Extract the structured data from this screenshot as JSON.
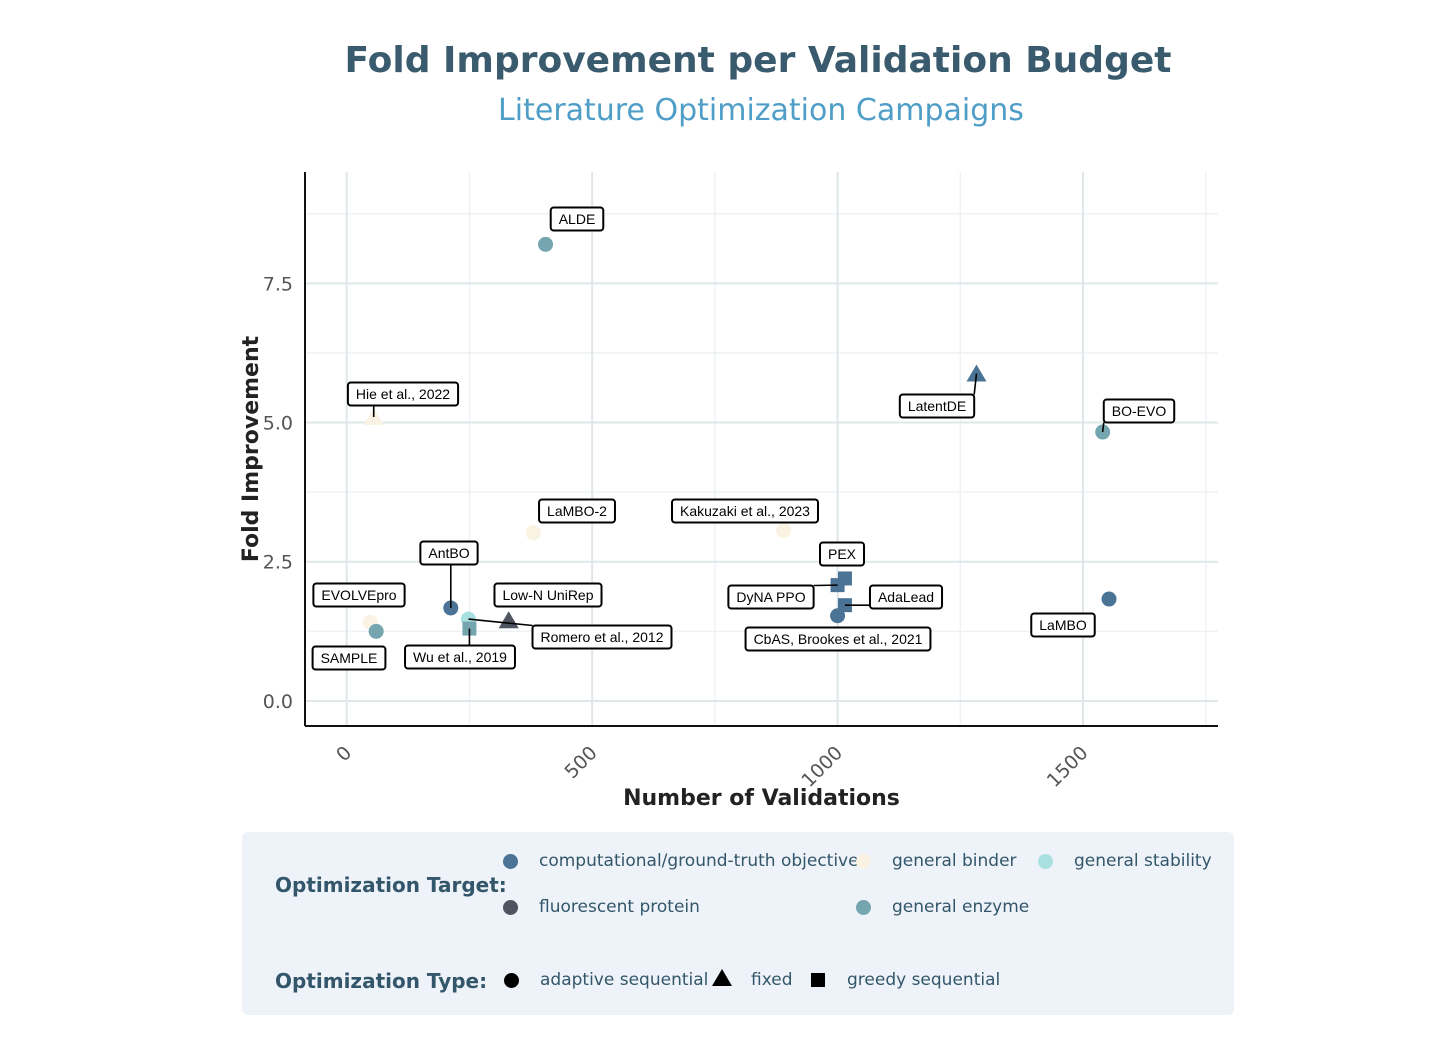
{
  "chart_data": {
    "type": "scatter",
    "title": "Fold Improvement per Validation Budget",
    "subtitle": "Literature Optimization Campaigns",
    "xlabel": "Number of Validations",
    "ylabel": "Fold Improvement",
    "xlim": [
      -85,
      1775
    ],
    "ylim": [
      -0.45,
      9.5
    ],
    "x_ticks": [
      0,
      500,
      1000,
      1500
    ],
    "x_tick_labels": [
      "0",
      "500",
      "1000",
      "1500"
    ],
    "y_ticks": [
      0,
      2.5,
      5,
      7.5
    ],
    "y_tick_labels": [
      "0.0",
      "2.5",
      "5.0",
      "7.5"
    ],
    "grid": true,
    "legend_position": "bottom",
    "colors": {
      "computational/ground-truth objective": "#4b7396",
      "general binder": "#faf2e2",
      "general stability": "#a8e0e0",
      "fluorescent protein": "#4f5560",
      "general enzyme": "#75a6b0"
    },
    "points": [
      {
        "name": "ALDE",
        "x": 405,
        "y": 8.2,
        "target": "general enzyme",
        "type": "adaptive sequential"
      },
      {
        "name": "Hie et al., 2022",
        "x": 55,
        "y": 5.1,
        "target": "general binder",
        "type": "fixed"
      },
      {
        "name": "LatentDE",
        "x": 1283,
        "y": 5.88,
        "target": "computational/ground-truth objective",
        "type": "fixed"
      },
      {
        "name": "BO-EVO",
        "x": 1540,
        "y": 4.83,
        "target": "general enzyme",
        "type": "adaptive sequential"
      },
      {
        "name": "LaMBO-2",
        "x": 380,
        "y": 3.02,
        "target": "general binder",
        "type": "adaptive sequential"
      },
      {
        "name": "Kakuzaki et al., 2023",
        "x": 890,
        "y": 3.06,
        "target": "general binder",
        "type": "adaptive sequential"
      },
      {
        "name": "PEX",
        "x": 1015,
        "y": 2.2,
        "target": "computational/ground-truth objective",
        "type": "greedy sequential"
      },
      {
        "name": "DyNA PPO",
        "x": 1000,
        "y": 2.08,
        "target": "computational/ground-truth objective",
        "type": "greedy sequential"
      },
      {
        "name": "AdaLead",
        "x": 1015,
        "y": 1.72,
        "target": "computational/ground-truth objective",
        "type": "greedy sequential"
      },
      {
        "name": "CbAS, Brookes et al., 2021",
        "x": 1000,
        "y": 1.53,
        "target": "computational/ground-truth objective",
        "type": "adaptive sequential"
      },
      {
        "name": "LaMBO",
        "x": 1553,
        "y": 1.83,
        "target": "computational/ground-truth objective",
        "type": "adaptive sequential"
      },
      {
        "name": "AntBO",
        "x": 212,
        "y": 1.67,
        "target": "computational/ground-truth objective",
        "type": "adaptive sequential"
      },
      {
        "name": "EVOLVEpro",
        "x": 48,
        "y": 1.41,
        "target": "general binder",
        "type": "adaptive sequential"
      },
      {
        "name": "SAMPLE",
        "x": 60,
        "y": 1.25,
        "target": "general enzyme",
        "type": "adaptive sequential"
      },
      {
        "name": "Low-N UniRep",
        "x": 330,
        "y": 1.45,
        "target": "fluorescent protein",
        "type": "fixed"
      },
      {
        "name": "Romero et al., 2012",
        "x": 248,
        "y": 1.47,
        "target": "general stability",
        "type": "adaptive sequential"
      },
      {
        "name": "Wu et al., 2019",
        "x": 250,
        "y": 1.3,
        "target": "general enzyme",
        "type": "greedy sequential"
      }
    ]
  },
  "legend": {
    "target_title": "Optimization Target:",
    "type_title": "Optimization Type:",
    "targets": [
      {
        "label": "computational/ground-truth objective",
        "color": "#4b7396"
      },
      {
        "label": "general binder",
        "color": "#faf2e2"
      },
      {
        "label": "general stability",
        "color": "#a8e0e0"
      },
      {
        "label": "fluorescent protein",
        "color": "#4f5560"
      },
      {
        "label": "general enzyme",
        "color": "#75a6b0"
      }
    ],
    "types": [
      {
        "label": "adaptive sequential",
        "shape": "circle"
      },
      {
        "label": "fixed",
        "shape": "triangle"
      },
      {
        "label": "greedy sequential",
        "shape": "square"
      }
    ]
  }
}
